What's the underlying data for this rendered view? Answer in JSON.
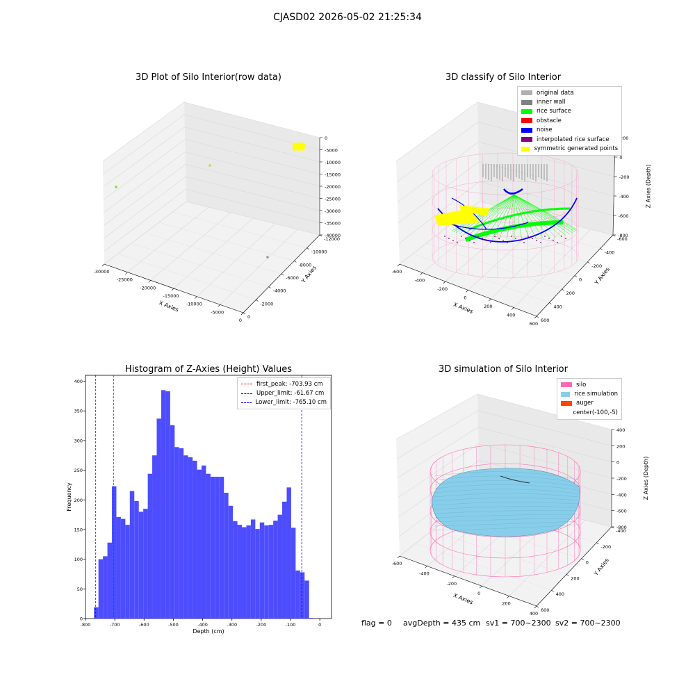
{
  "figure": {
    "suptitle": "CJASD02 2026-05-02 21:25:34",
    "footer": {
      "flag": "flag = 0",
      "avg_depth": "avgDepth = 435 cm",
      "sv1": "sv1 = 700~2300",
      "sv2": "sv2 = 700~2300"
    }
  },
  "colors": {
    "hist_bar": "#4d4dff",
    "peak_line": "#ff0000",
    "limit_line": "#0000ff",
    "silo": "#ff69b4",
    "rice": "#87ceeb",
    "auger": "#ff4500",
    "original": "#b0b0b0",
    "inner_wall": "#808080",
    "rice_surface": "#00ff00",
    "obstacle": "#ff0000",
    "noise": "#0000ff",
    "interp": "#800080",
    "symmetric": "#ffff00"
  },
  "panel1": {
    "title": "3D Plot of Silo Interior(row data)",
    "xlabel": "X Axies",
    "ylabel": "Y Axies",
    "zlabel": "Z Axies (Depth)",
    "x_ticks": [
      "-30000",
      "-25000",
      "-20000",
      "-15000",
      "-10000",
      "-5000",
      "0"
    ],
    "y_ticks": [
      "0",
      "-2000",
      "-4000",
      "-6000",
      "-8000",
      "-10000",
      "-12000"
    ],
    "z_ticks": [
      "0",
      "-5000",
      "-10000",
      "-15000",
      "-20000",
      "-25000",
      "-30000",
      "-35000",
      "-40000"
    ]
  },
  "panel2": {
    "title": "3D classify of Silo Interior",
    "xlabel": "X Axies",
    "ylabel": "Y Axies",
    "zlabel": "Z Axies (Depth)",
    "x_ticks": [
      "-600",
      "-400",
      "-200",
      "0",
      "200",
      "400",
      "600"
    ],
    "y_ticks": [
      "600",
      "400",
      "200",
      "0",
      "-200",
      "-400",
      "-600"
    ],
    "z_ticks": [
      "200",
      "0",
      "-200",
      "-400",
      "-600",
      "-800"
    ],
    "legend": [
      {
        "label": "original data",
        "color": "#b0b0b0"
      },
      {
        "label": "inner wall",
        "color": "#808080"
      },
      {
        "label": "rice surface",
        "color": "#00ff00"
      },
      {
        "label": "obstacle",
        "color": "#ff0000"
      },
      {
        "label": "noise",
        "color": "#0000ff"
      },
      {
        "label": "interpolated rice surface",
        "color": "#800080"
      },
      {
        "label": "symmetric generated points",
        "color": "#ffff00"
      }
    ]
  },
  "panel4": {
    "title": "3D simulation of Silo Interior",
    "xlabel": "X Axies",
    "ylabel": "Y Axies",
    "zlabel": "Z Axies (Depth)",
    "x_ticks": [
      "-600",
      "-400",
      "-200",
      "0",
      "200",
      "400"
    ],
    "y_ticks": [
      "600",
      "400",
      "200",
      "0",
      "-200",
      "-400"
    ],
    "z_ticks": [
      "400",
      "200",
      "0",
      "-200",
      "-400",
      "-600",
      "-800"
    ],
    "legend": [
      {
        "label": "silo",
        "color": "#ff69b4"
      },
      {
        "label": "rice simulation",
        "color": "#87ceeb"
      },
      {
        "label": "auger",
        "color": "#ff4500"
      },
      {
        "label": "center(-100,-5)",
        "color": ""
      }
    ]
  },
  "chart_data": {
    "type": "bar",
    "title": "Histogram of Z-Axies (Height) Values",
    "xlabel": "Depth (cm)",
    "ylabel": "Frequency",
    "xlim": [
      -800,
      40
    ],
    "ylim": [
      0,
      410
    ],
    "x_ticks": [
      -800,
      -700,
      -600,
      -500,
      -400,
      -300,
      -200,
      -100,
      0
    ],
    "y_ticks": [
      0,
      50,
      100,
      150,
      200,
      250,
      300,
      350,
      400
    ],
    "bin_start": -771,
    "bin_width": 15.3,
    "values": [
      19,
      100,
      105,
      128,
      223,
      171,
      168,
      158,
      215,
      198,
      180,
      185,
      244,
      275,
      337,
      385,
      383,
      326,
      289,
      287,
      275,
      272,
      266,
      251,
      258,
      244,
      239,
      239,
      239,
      212,
      190,
      164,
      158,
      154,
      157,
      167,
      151,
      162,
      157,
      158,
      165,
      175,
      197,
      221,
      153,
      81,
      78,
      64,
      1
    ],
    "lines": [
      {
        "name": "first_peak: -703.93 cm",
        "x": -703.93,
        "color": "#ff0000"
      },
      {
        "name": "Upper_limit: -61.67 cm",
        "x": -61.67,
        "color": "#0000ff"
      },
      {
        "name": "Lower_limit: -765.10 cm",
        "x": -765.1,
        "color": "#0000ff"
      }
    ],
    "legend_position": "top-right"
  }
}
